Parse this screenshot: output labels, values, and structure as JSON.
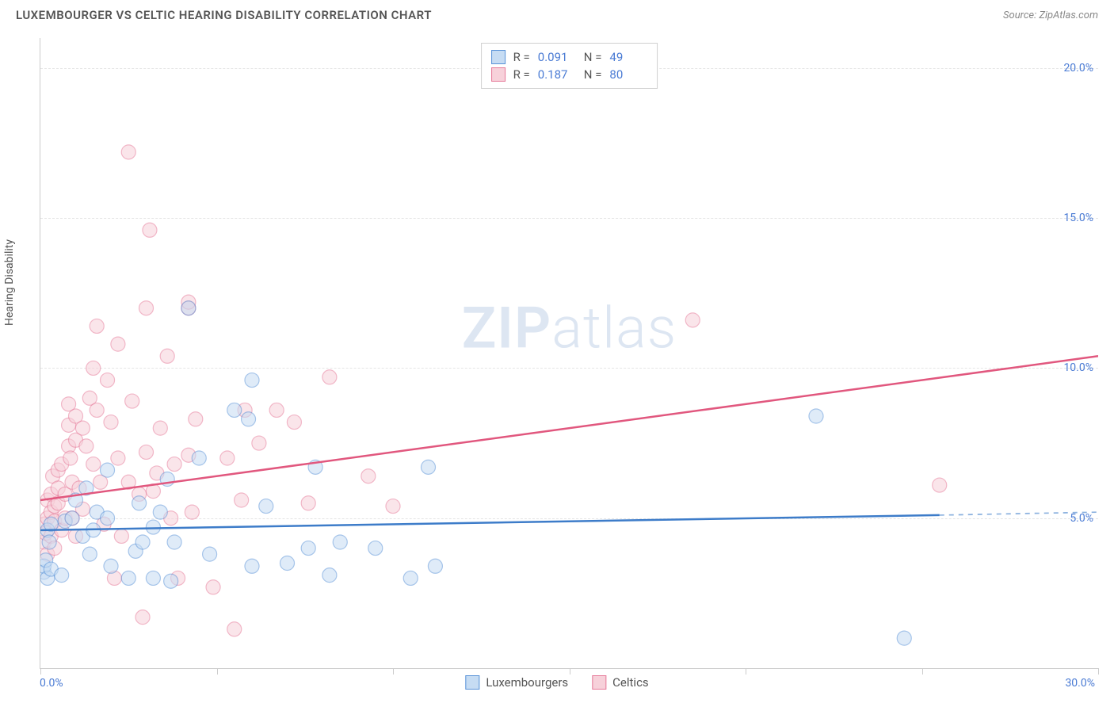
{
  "header": {
    "title": "LUXEMBOURGER VS CELTIC HEARING DISABILITY CORRELATION CHART",
    "source_prefix": "Source: ",
    "source_name": "ZipAtlas.com"
  },
  "watermark": {
    "part1": "ZIP",
    "part2": "atlas"
  },
  "chart": {
    "type": "scatter",
    "y_axis_label": "Hearing Disability",
    "xlim": [
      0,
      30
    ],
    "ylim": [
      0,
      21
    ],
    "x_ticks": [
      0,
      5,
      10,
      15,
      20,
      25,
      30
    ],
    "x_tick_labels": {
      "0": "0.0%",
      "30": "30.0%"
    },
    "y_ticks": [
      5,
      10,
      15,
      20
    ],
    "y_tick_labels": {
      "5": "5.0%",
      "10": "10.0%",
      "15": "15.0%",
      "20": "20.0%"
    },
    "grid_color": "#e5e5e5",
    "background_color": "#ffffff",
    "axis_color": "#cccccc",
    "tick_label_color": "#4a7bd4",
    "marker_radius": 9,
    "marker_opacity": 0.55,
    "line_width": 2.5,
    "series": [
      {
        "name": "Luxembourgers",
        "color_fill": "#c6dcf3",
        "color_stroke": "#5a93d8",
        "line_color": "#3d7cc9",
        "R": 0.091,
        "N": 49,
        "trend": {
          "x1": 0,
          "y1": 4.6,
          "x2": 25.5,
          "y2": 5.1,
          "x_dash_end": 30,
          "y_dash_end": 5.2
        },
        "points": [
          [
            0.1,
            3.2
          ],
          [
            0.1,
            3.4
          ],
          [
            0.2,
            3.0
          ],
          [
            0.15,
            3.6
          ],
          [
            0.2,
            4.6
          ],
          [
            0.3,
            4.8
          ],
          [
            0.25,
            4.2
          ],
          [
            0.3,
            3.3
          ],
          [
            0.6,
            3.1
          ],
          [
            0.7,
            4.9
          ],
          [
            0.9,
            5.0
          ],
          [
            1.0,
            5.6
          ],
          [
            1.2,
            4.4
          ],
          [
            1.3,
            6.0
          ],
          [
            1.4,
            3.8
          ],
          [
            1.5,
            4.6
          ],
          [
            1.6,
            5.2
          ],
          [
            1.9,
            5.0
          ],
          [
            1.9,
            6.6
          ],
          [
            2.0,
            3.4
          ],
          [
            2.5,
            3.0
          ],
          [
            2.7,
            3.9
          ],
          [
            2.8,
            5.5
          ],
          [
            2.9,
            4.2
          ],
          [
            3.2,
            3.0
          ],
          [
            3.2,
            4.7
          ],
          [
            3.4,
            5.2
          ],
          [
            3.6,
            6.3
          ],
          [
            3.7,
            2.9
          ],
          [
            3.8,
            4.2
          ],
          [
            4.2,
            12.0
          ],
          [
            4.5,
            7.0
          ],
          [
            4.8,
            3.8
          ],
          [
            5.5,
            8.6
          ],
          [
            5.9,
            8.3
          ],
          [
            6.0,
            9.6
          ],
          [
            6.0,
            3.4
          ],
          [
            6.4,
            5.4
          ],
          [
            7.0,
            3.5
          ],
          [
            7.6,
            4.0
          ],
          [
            7.8,
            6.7
          ],
          [
            8.2,
            3.1
          ],
          [
            8.5,
            4.2
          ],
          [
            9.5,
            4.0
          ],
          [
            10.5,
            3.0
          ],
          [
            11.0,
            6.7
          ],
          [
            11.2,
            3.4
          ],
          [
            22.0,
            8.4
          ],
          [
            24.5,
            1.0
          ]
        ]
      },
      {
        "name": "Celtics",
        "color_fill": "#f7d1da",
        "color_stroke": "#e67a99",
        "line_color": "#e1577e",
        "R": 0.187,
        "N": 80,
        "trend": {
          "x1": 0,
          "y1": 5.6,
          "x2": 30,
          "y2": 10.4
        },
        "points": [
          [
            0.1,
            4.2
          ],
          [
            0.1,
            4.8
          ],
          [
            0.15,
            4.5
          ],
          [
            0.2,
            3.8
          ],
          [
            0.2,
            5.0
          ],
          [
            0.2,
            5.6
          ],
          [
            0.3,
            4.4
          ],
          [
            0.3,
            5.2
          ],
          [
            0.3,
            5.8
          ],
          [
            0.35,
            6.4
          ],
          [
            0.4,
            4.0
          ],
          [
            0.4,
            4.9
          ],
          [
            0.4,
            5.4
          ],
          [
            0.5,
            6.0
          ],
          [
            0.5,
            6.6
          ],
          [
            0.5,
            5.5
          ],
          [
            0.6,
            4.6
          ],
          [
            0.6,
            6.8
          ],
          [
            0.7,
            5.8
          ],
          [
            0.7,
            5.0
          ],
          [
            0.8,
            7.4
          ],
          [
            0.8,
            8.1
          ],
          [
            0.8,
            8.8
          ],
          [
            0.85,
            7.0
          ],
          [
            0.9,
            6.2
          ],
          [
            0.9,
            5.0
          ],
          [
            1.0,
            4.4
          ],
          [
            1.0,
            7.6
          ],
          [
            1.0,
            8.4
          ],
          [
            1.1,
            6.0
          ],
          [
            1.2,
            5.3
          ],
          [
            1.2,
            8.0
          ],
          [
            1.3,
            7.4
          ],
          [
            1.4,
            9.0
          ],
          [
            1.5,
            6.8
          ],
          [
            1.5,
            10.0
          ],
          [
            1.6,
            8.6
          ],
          [
            1.6,
            11.4
          ],
          [
            1.7,
            6.2
          ],
          [
            1.8,
            4.8
          ],
          [
            1.9,
            9.6
          ],
          [
            2.0,
            8.2
          ],
          [
            2.1,
            3.0
          ],
          [
            2.2,
            7.0
          ],
          [
            2.2,
            10.8
          ],
          [
            2.3,
            4.4
          ],
          [
            2.5,
            17.2
          ],
          [
            2.5,
            6.2
          ],
          [
            2.6,
            8.9
          ],
          [
            2.8,
            5.8
          ],
          [
            2.9,
            1.7
          ],
          [
            3.0,
            12.0
          ],
          [
            3.0,
            7.2
          ],
          [
            3.1,
            14.6
          ],
          [
            3.2,
            5.9
          ],
          [
            3.3,
            6.5
          ],
          [
            3.4,
            8.0
          ],
          [
            3.6,
            10.4
          ],
          [
            3.7,
            5.0
          ],
          [
            3.8,
            6.8
          ],
          [
            3.9,
            3.0
          ],
          [
            4.2,
            7.1
          ],
          [
            4.2,
            12.0
          ],
          [
            4.2,
            12.2
          ],
          [
            4.3,
            5.2
          ],
          [
            4.4,
            8.3
          ],
          [
            4.9,
            2.7
          ],
          [
            5.3,
            7.0
          ],
          [
            5.5,
            1.3
          ],
          [
            5.7,
            5.6
          ],
          [
            5.8,
            8.6
          ],
          [
            6.2,
            7.5
          ],
          [
            6.7,
            8.6
          ],
          [
            7.2,
            8.2
          ],
          [
            7.6,
            5.5
          ],
          [
            8.2,
            9.7
          ],
          [
            9.3,
            6.4
          ],
          [
            10.0,
            5.4
          ],
          [
            18.5,
            11.6
          ],
          [
            25.5,
            6.1
          ]
        ]
      }
    ],
    "legend_top": {
      "r_label": "R =",
      "n_label": "N ="
    },
    "legend_bottom": [
      {
        "label": "Luxembourgers",
        "fill": "#c6dcf3",
        "stroke": "#5a93d8"
      },
      {
        "label": "Celtics",
        "fill": "#f7d1da",
        "stroke": "#e67a99"
      }
    ]
  }
}
